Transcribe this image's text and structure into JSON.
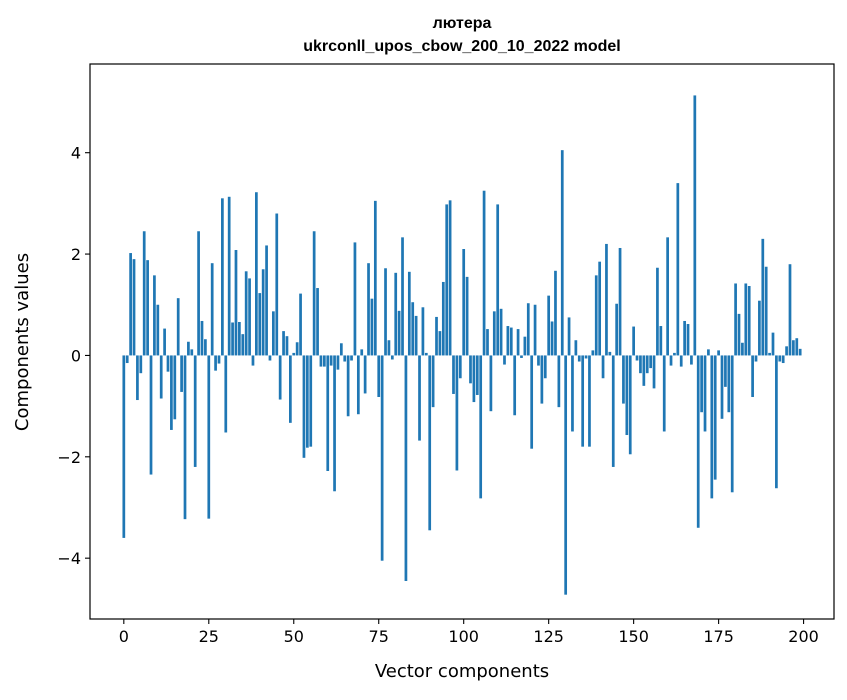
{
  "chart_data": {
    "type": "bar",
    "title": "лютера",
    "subtitle": "ukrconll_upos_cbow_200_10_2022 model",
    "xlabel": "Vector components",
    "ylabel": "Components values",
    "xlim": [
      -9.95,
      208.95
    ],
    "ylim": [
      -5.2,
      5.75
    ],
    "x_ticks": [
      0,
      25,
      50,
      75,
      100,
      125,
      150,
      175,
      200
    ],
    "y_ticks": [
      -4,
      -2,
      0,
      2,
      4
    ],
    "x_tick_labels": [
      "0",
      "25",
      "50",
      "75",
      "100",
      "125",
      "150",
      "175",
      "200"
    ],
    "y_tick_labels": [
      "−4",
      "−2",
      "0",
      "2",
      "4"
    ],
    "bar_color": "#1f77b4",
    "grid": false,
    "legend": false,
    "x": [
      0,
      1,
      2,
      3,
      4,
      5,
      6,
      7,
      8,
      9,
      10,
      11,
      12,
      13,
      14,
      15,
      16,
      17,
      18,
      19,
      20,
      21,
      22,
      23,
      24,
      25,
      26,
      27,
      28,
      29,
      30,
      31,
      32,
      33,
      34,
      35,
      36,
      37,
      38,
      39,
      40,
      41,
      42,
      43,
      44,
      45,
      46,
      47,
      48,
      49,
      50,
      51,
      52,
      53,
      54,
      55,
      56,
      57,
      58,
      59,
      60,
      61,
      62,
      63,
      64,
      65,
      66,
      67,
      68,
      69,
      70,
      71,
      72,
      73,
      74,
      75,
      76,
      77,
      78,
      79,
      80,
      81,
      82,
      83,
      84,
      85,
      86,
      87,
      88,
      89,
      90,
      91,
      92,
      93,
      94,
      95,
      96,
      97,
      98,
      99,
      100,
      101,
      102,
      103,
      104,
      105,
      106,
      107,
      108,
      109,
      110,
      111,
      112,
      113,
      114,
      115,
      116,
      117,
      118,
      119,
      120,
      121,
      122,
      123,
      124,
      125,
      126,
      127,
      128,
      129,
      130,
      131,
      132,
      133,
      134,
      135,
      136,
      137,
      138,
      139,
      140,
      141,
      142,
      143,
      144,
      145,
      146,
      147,
      148,
      149,
      150,
      151,
      152,
      153,
      154,
      155,
      156,
      157,
      158,
      159,
      160,
      161,
      162,
      163,
      164,
      165,
      166,
      167,
      168,
      169,
      170,
      171,
      172,
      173,
      174,
      175,
      176,
      177,
      178,
      179,
      180,
      181,
      182,
      183,
      184,
      185,
      186,
      187,
      188,
      189,
      190,
      191,
      192,
      193,
      194,
      195,
      196,
      197,
      198,
      199
    ],
    "values": [
      -3.6,
      -0.15,
      2.02,
      1.9,
      -0.88,
      -0.35,
      2.45,
      1.88,
      -2.35,
      1.58,
      1.0,
      -0.85,
      0.53,
      -0.32,
      -1.47,
      -1.26,
      1.13,
      -0.72,
      -3.23,
      0.27,
      0.12,
      -2.2,
      2.45,
      0.68,
      0.32,
      -3.22,
      1.82,
      -0.3,
      -0.16,
      3.1,
      -1.52,
      3.13,
      0.65,
      2.08,
      0.66,
      0.42,
      1.66,
      1.52,
      -0.2,
      3.22,
      1.23,
      1.7,
      2.17,
      -0.1,
      0.87,
      2.8,
      -0.87,
      0.48,
      0.38,
      -1.33,
      0.05,
      0.26,
      1.22,
      -2.02,
      -1.82,
      -1.8,
      2.45,
      1.33,
      -0.22,
      -0.22,
      -2.28,
      -0.2,
      -2.68,
      -0.28,
      0.24,
      -0.12,
      -1.2,
      -0.1,
      2.23,
      -1.16,
      0.12,
      -0.75,
      1.82,
      1.12,
      3.05,
      -0.82,
      -4.05,
      1.72,
      0.3,
      -0.08,
      1.63,
      0.88,
      2.33,
      -4.45,
      1.65,
      1.05,
      0.78,
      -1.68,
      0.95,
      0.05,
      -3.45,
      -1.02,
      0.76,
      0.48,
      1.45,
      2.98,
      3.06,
      -0.76,
      -2.27,
      -0.45,
      2.1,
      1.55,
      -0.55,
      -0.92,
      -0.78,
      -2.82,
      3.25,
      0.52,
      -1.1,
      0.87,
      2.98,
      0.92,
      -0.18,
      0.58,
      0.55,
      -1.18,
      0.52,
      -0.05,
      0.37,
      1.03,
      -1.84,
      1.0,
      -0.2,
      -0.95,
      -0.45,
      1.18,
      0.67,
      1.67,
      -1.02,
      4.05,
      -4.72,
      0.75,
      -1.5,
      0.3,
      -0.12,
      -1.8,
      -0.06,
      -1.8,
      0.1,
      1.58,
      1.85,
      -0.45,
      2.2,
      0.07,
      -2.2,
      1.02,
      2.12,
      -0.95,
      -1.57,
      -1.95,
      0.57,
      -0.1,
      -0.35,
      -0.6,
      -0.35,
      -0.25,
      -0.65,
      1.73,
      0.58,
      -1.5,
      2.33,
      -0.2,
      0.05,
      3.4,
      -0.22,
      0.68,
      0.62,
      -0.18,
      5.13,
      -3.4,
      -1.12,
      -1.5,
      0.12,
      -2.82,
      -2.45,
      0.1,
      -1.25,
      -0.62,
      -1.12,
      -2.7,
      1.42,
      0.82,
      0.25,
      1.42,
      1.37,
      -0.82,
      -0.12,
      1.08,
      2.3,
      1.75,
      0.05,
      0.45,
      -2.62,
      -0.12,
      -0.15,
      0.18,
      1.8,
      0.3,
      0.34,
      0.13
    ]
  }
}
